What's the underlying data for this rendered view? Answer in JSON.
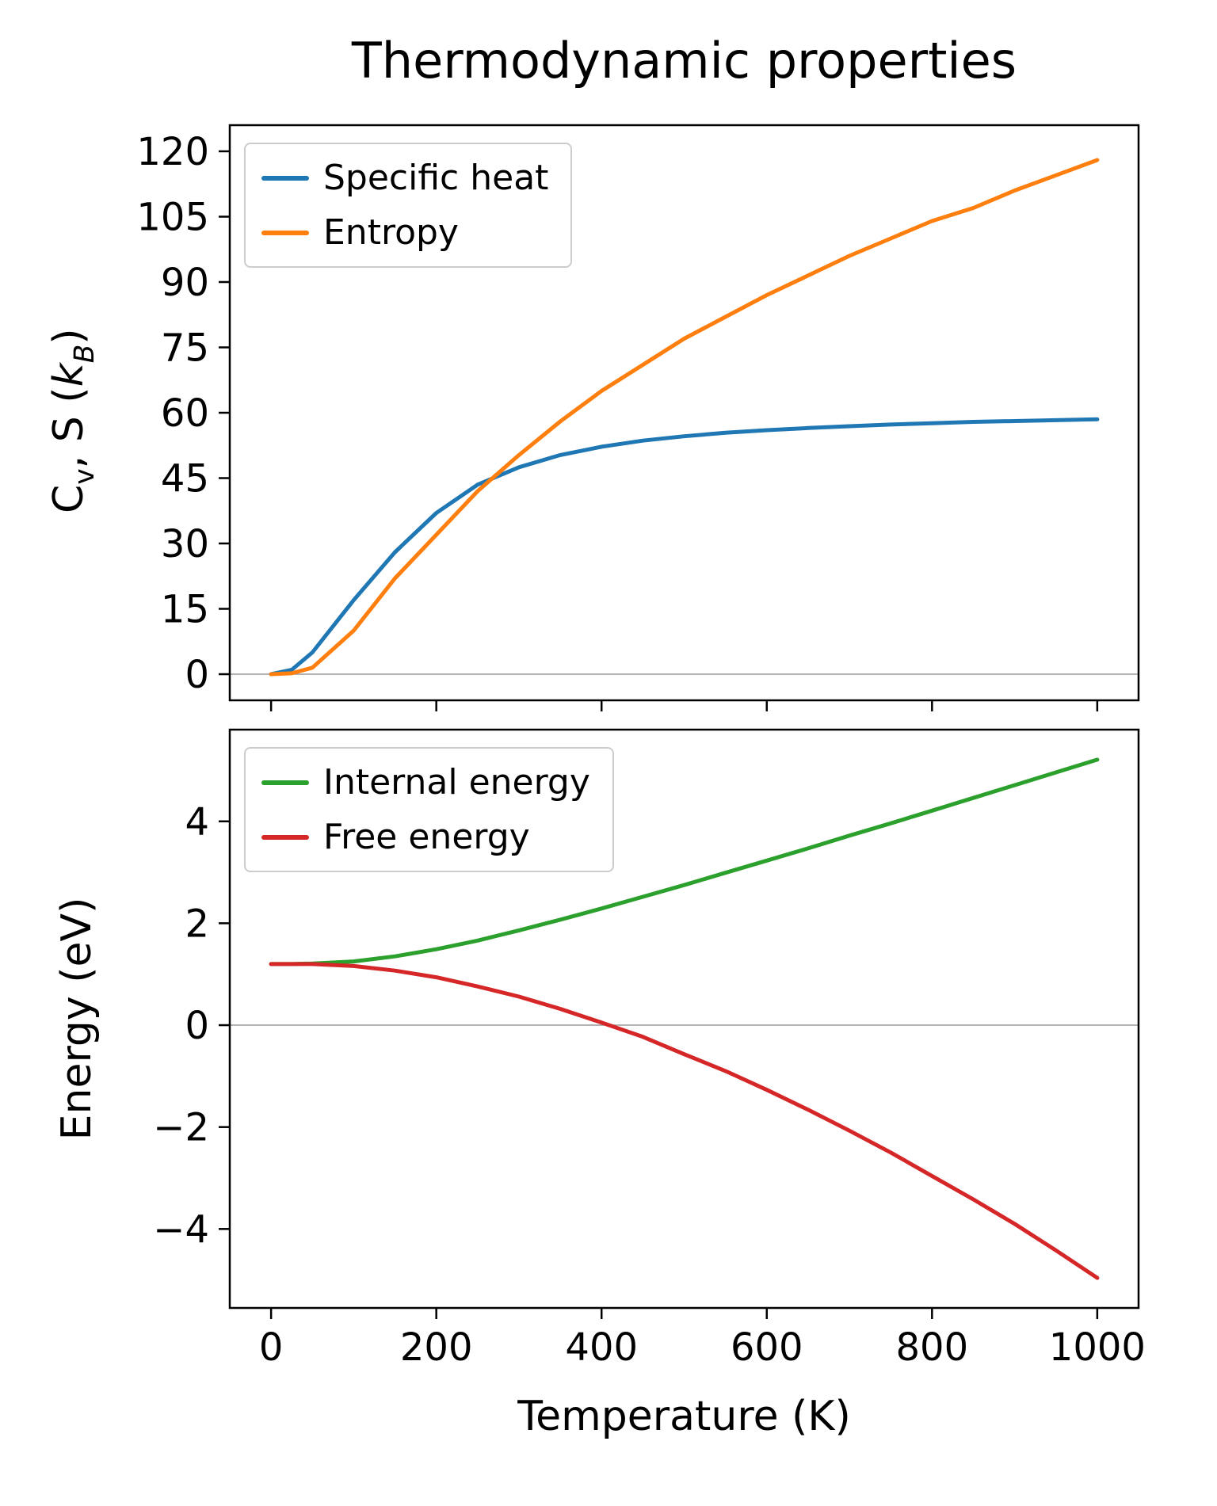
{
  "figure": {
    "title": "Thermodynamic properties",
    "xlabel": "Temperature (K)",
    "background_color": "#ffffff",
    "spine_color": "#000000",
    "zero_line_color": "#9a9a9a"
  },
  "ylabel_top_parts": {
    "pre": "C",
    "sub1": "v",
    "mid": ", S (",
    "kvar": "k",
    "sub2": "B",
    "post": ")"
  },
  "chart_data": [
    {
      "type": "line",
      "title": "Thermodynamic properties",
      "ylabel": "Cv, S (kB)",
      "xlabel": "",
      "xlim": [
        -50,
        1050
      ],
      "ylim": [
        -6,
        126
      ],
      "grid": false,
      "zero_line": true,
      "xticks": [
        0,
        200,
        400,
        600,
        800,
        1000
      ],
      "xtick_labels": [
        "0",
        "200",
        "400",
        "600",
        "800",
        "1000"
      ],
      "xtick_labels_visible": false,
      "yticks": [
        0,
        15,
        30,
        45,
        60,
        75,
        90,
        105,
        120
      ],
      "ytick_labels": [
        "0",
        "15",
        "30",
        "45",
        "60",
        "75",
        "90",
        "105",
        "120"
      ],
      "legend": {
        "loc": "upper left",
        "labels": [
          "Specific heat",
          "Entropy"
        ]
      },
      "x": [
        0,
        25,
        50,
        100,
        150,
        200,
        250,
        300,
        350,
        400,
        450,
        500,
        550,
        600,
        650,
        700,
        750,
        800,
        850,
        900,
        950,
        1000
      ],
      "series": [
        {
          "name": "Specific heat",
          "color": "#1f77b4",
          "values": [
            0,
            1.0,
            5.0,
            17,
            28,
            37,
            43.5,
            47.5,
            50.3,
            52.2,
            53.6,
            54.6,
            55.4,
            56.0,
            56.5,
            56.9,
            57.3,
            57.6,
            57.9,
            58.1,
            58.3,
            58.5
          ]
        },
        {
          "name": "Entropy",
          "color": "#ff7f0e",
          "values": [
            0,
            0.2,
            1.5,
            10,
            22,
            32,
            42,
            50.3,
            58,
            65,
            71,
            77,
            82,
            87,
            91.5,
            96,
            100,
            104,
            107,
            111,
            114.5,
            118
          ]
        }
      ]
    },
    {
      "type": "line",
      "title": "",
      "ylabel": "Energy (eV)",
      "xlabel": "Temperature (K)",
      "xlim": [
        -50,
        1050
      ],
      "ylim": [
        -5.55,
        5.8
      ],
      "grid": false,
      "zero_line": true,
      "xticks": [
        0,
        200,
        400,
        600,
        800,
        1000
      ],
      "xtick_labels": [
        "0",
        "200",
        "400",
        "600",
        "800",
        "1000"
      ],
      "xtick_labels_visible": true,
      "yticks": [
        -4,
        -2,
        0,
        2,
        4
      ],
      "ytick_labels": [
        "−4",
        "−2",
        "0",
        "2",
        "4"
      ],
      "legend": {
        "loc": "upper left",
        "labels": [
          "Internal energy",
          "Free energy"
        ]
      },
      "x": [
        0,
        25,
        50,
        100,
        150,
        200,
        250,
        300,
        350,
        400,
        450,
        500,
        550,
        600,
        650,
        700,
        750,
        800,
        850,
        900,
        950,
        1000
      ],
      "series": [
        {
          "name": "Internal energy",
          "color": "#2ca02c",
          "values": [
            1.2,
            1.2,
            1.21,
            1.25,
            1.35,
            1.49,
            1.66,
            1.86,
            2.07,
            2.29,
            2.52,
            2.75,
            2.99,
            3.23,
            3.47,
            3.72,
            3.96,
            4.21,
            4.46,
            4.71,
            4.96,
            5.21
          ]
        },
        {
          "name": "Free energy",
          "color": "#d62728",
          "values": [
            1.2,
            1.2,
            1.2,
            1.16,
            1.07,
            0.94,
            0.76,
            0.56,
            0.32,
            0.05,
            -0.23,
            -0.57,
            -0.9,
            -1.27,
            -1.66,
            -2.07,
            -2.5,
            -2.96,
            -3.42,
            -3.9,
            -4.42,
            -4.96
          ]
        }
      ]
    }
  ]
}
